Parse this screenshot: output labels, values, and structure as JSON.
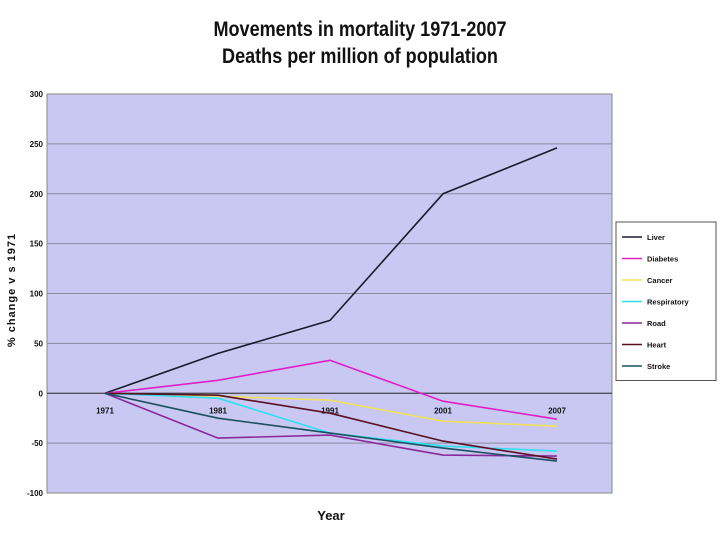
{
  "chart_data": {
    "type": "line",
    "title": "Movements in mortality 1971-2007",
    "subtitle": "Deaths per million of population",
    "xlabel": "Year",
    "ylabel": "% change v s 1971",
    "categories": [
      "1971",
      "1981",
      "1991",
      "2001",
      "2007"
    ],
    "ylim": [
      -100,
      300
    ],
    "yticks": [
      "300",
      "250",
      "200",
      "150",
      "100",
      "50",
      "0",
      "-50",
      "-100"
    ],
    "grid": true,
    "legend_position": "right",
    "series": [
      {
        "name": "Liver",
        "color": "#1a1a2e",
        "values": [
          0,
          40,
          73,
          200,
          246
        ]
      },
      {
        "name": "Diabetes",
        "color": "#e020c8",
        "values": [
          0,
          13,
          33,
          -8,
          -26
        ]
      },
      {
        "name": "Cancer",
        "color": "#f0e060",
        "values": [
          0,
          -3,
          -7,
          -28,
          -33
        ]
      },
      {
        "name": "Respiratory",
        "color": "#30e0f0",
        "values": [
          0,
          -5,
          -40,
          -53,
          -58
        ]
      },
      {
        "name": "Road",
        "color": "#8a2a9a",
        "values": [
          0,
          -45,
          -42,
          -62,
          -63
        ]
      },
      {
        "name": "Heart",
        "color": "#5a1020",
        "values": [
          0,
          -2,
          -20,
          -48,
          -66
        ]
      },
      {
        "name": "Stroke",
        "color": "#1a5060",
        "values": [
          0,
          -25,
          -40,
          -55,
          -68
        ]
      }
    ]
  }
}
